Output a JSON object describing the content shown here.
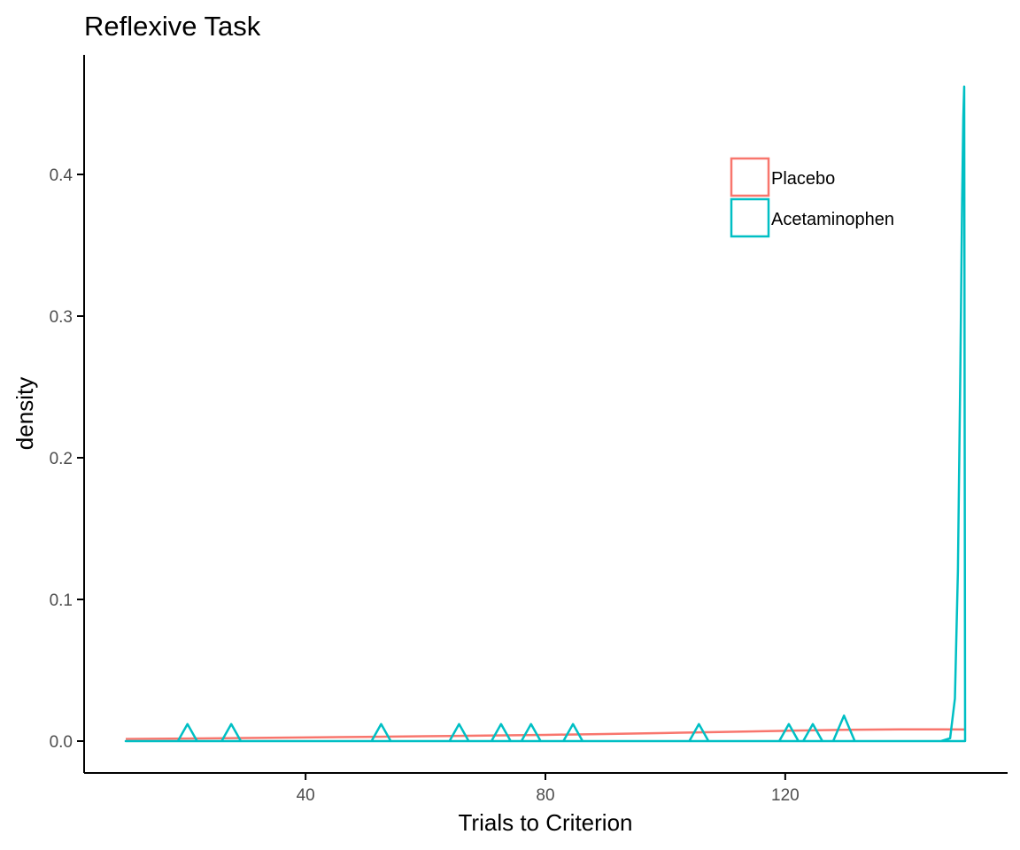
{
  "chart_data": {
    "type": "line",
    "chart_kind": "density",
    "title": "Reflexive Task",
    "xlabel": "Trials to Criterion",
    "ylabel": "density",
    "xlim": [
      10,
      150
    ],
    "ylim": [
      0,
      0.46
    ],
    "x_ticks": [
      40,
      80,
      120
    ],
    "x_tick_labels": [
      "40",
      "80",
      "120"
    ],
    "y_ticks": [
      0.0,
      0.1,
      0.2,
      0.3,
      0.4
    ],
    "y_tick_labels": [
      "0.0",
      "0.1",
      "0.2",
      "0.3",
      "0.4"
    ],
    "grid": false,
    "legend_position": "top-right",
    "series": [
      {
        "name": "Placebo",
        "color": "#F8766D",
        "x": [
          10,
          20,
          30,
          40,
          50,
          60,
          70,
          80,
          90,
          100,
          110,
          120,
          130,
          140,
          146,
          150
        ],
        "values": [
          0.0015,
          0.0018,
          0.0022,
          0.0026,
          0.003,
          0.0034,
          0.0039,
          0.0044,
          0.005,
          0.0057,
          0.0065,
          0.0073,
          0.008,
          0.0083,
          0.0083,
          0.0082
        ]
      },
      {
        "name": "Acetaminophen",
        "color": "#00BFC4",
        "x": [
          10,
          18.7,
          19.5,
          20.3,
          21.1,
          21.9,
          26.0,
          26.8,
          27.6,
          28.4,
          29.2,
          51.0,
          51.8,
          52.6,
          53.4,
          54.2,
          64.0,
          64.8,
          65.6,
          66.4,
          67.2,
          71.0,
          71.8,
          72.6,
          73.4,
          74.2,
          76.0,
          76.8,
          77.6,
          78.4,
          79.2,
          83.0,
          83.8,
          84.6,
          85.4,
          86.2,
          104.0,
          104.8,
          105.6,
          106.4,
          107.2,
          119.0,
          119.8,
          120.6,
          121.4,
          122.2,
          123.0,
          123.8,
          124.6,
          125.4,
          126.2,
          128.0,
          128.9,
          129.8,
          130.7,
          131.6,
          146.0,
          147.5,
          148.3,
          148.8,
          149.2,
          149.5,
          149.7,
          149.85,
          150.0
        ],
        "values": [
          0,
          0,
          0.006,
          0.012,
          0.006,
          0,
          0,
          0.006,
          0.012,
          0.006,
          0,
          0,
          0.006,
          0.012,
          0.006,
          0,
          0,
          0.006,
          0.012,
          0.006,
          0,
          0,
          0.006,
          0.012,
          0.006,
          0,
          0,
          0.006,
          0.012,
          0.006,
          0,
          0,
          0.006,
          0.012,
          0.006,
          0,
          0,
          0.006,
          0.012,
          0.006,
          0,
          0,
          0.006,
          0.012,
          0.006,
          0,
          0,
          0.006,
          0.012,
          0.006,
          0,
          0,
          0.009,
          0.018,
          0.009,
          0,
          0,
          0.002,
          0.03,
          0.12,
          0.26,
          0.38,
          0.44,
          0.462,
          0
        ],
        "closed": true
      }
    ]
  }
}
